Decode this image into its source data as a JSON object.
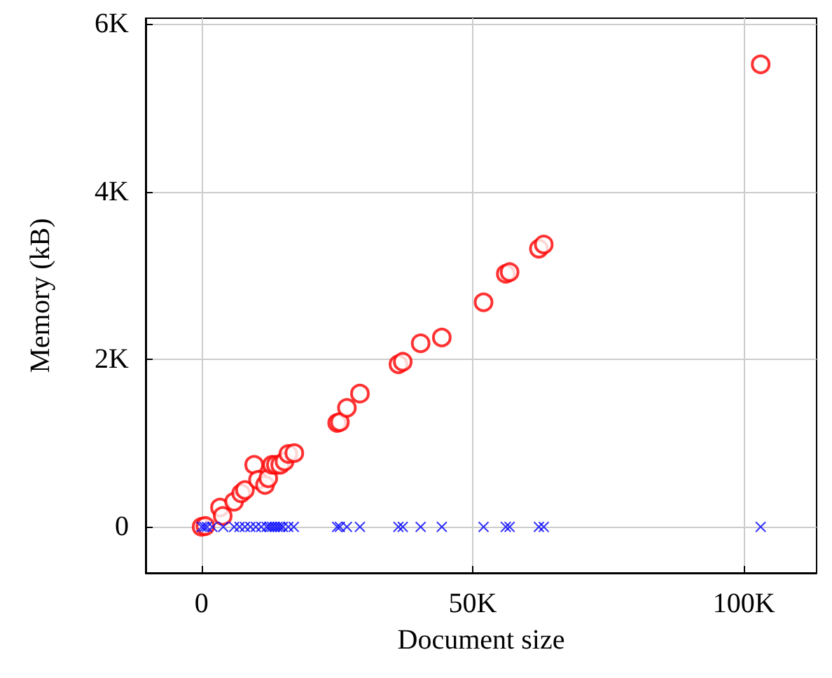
{
  "chart_data": {
    "type": "scatter",
    "xlabel": "Document size",
    "ylabel": "Memory (kB)",
    "xlim": [
      -10310,
      113410
    ],
    "ylim": [
      -550,
      6070
    ],
    "xticks": [
      0,
      {
        "value": 50000,
        "label": "50K"
      },
      {
        "value": 100000,
        "label": "100K"
      }
    ],
    "yticks": [
      0,
      {
        "value": 2000,
        "label": "2K"
      },
      {
        "value": 4000,
        "label": "4K"
      },
      {
        "value": 6000,
        "label": "6K"
      }
    ],
    "grid": true,
    "series": [
      {
        "color": "#ff0000",
        "marker": "circle",
        "x": [
          0,
          700,
          3400,
          3900,
          6000,
          7300,
          8000,
          9700,
          10400,
          11700,
          12300,
          13000,
          13700,
          14500,
          15300,
          16000,
          17100,
          25000,
          25500,
          26800,
          29200,
          36300,
          37100,
          40400,
          44300,
          52000,
          56100,
          56800,
          62200,
          63100,
          103100
        ],
        "values": [
          0,
          10,
          230,
          130,
          300,
          400,
          440,
          740,
          560,
          500,
          580,
          740,
          740,
          740,
          780,
          870,
          880,
          1240,
          1250,
          1420,
          1590,
          1940,
          1970,
          2190,
          2260,
          2680,
          3020,
          3040,
          3320,
          3370,
          5520
        ]
      },
      {
        "color": "#0000ff",
        "marker": "cross",
        "x": [
          0,
          500,
          1000,
          2000,
          4000,
          6000,
          7000,
          8000,
          9000,
          10000,
          11000,
          12000,
          12500,
          13000,
          13500,
          14000,
          14500,
          15000,
          16000,
          17000,
          25000,
          25500,
          26800,
          29200,
          36300,
          37100,
          40400,
          44300,
          52000,
          56100,
          56800,
          62200,
          63100,
          103100
        ],
        "values": [
          0,
          0,
          0,
          0,
          0,
          0,
          0,
          0,
          0,
          0,
          0,
          0,
          0,
          0,
          0,
          0,
          0,
          0,
          0,
          0,
          0,
          0,
          0,
          0,
          0,
          0,
          0,
          0,
          0,
          0,
          0,
          0,
          0,
          0
        ]
      }
    ]
  }
}
